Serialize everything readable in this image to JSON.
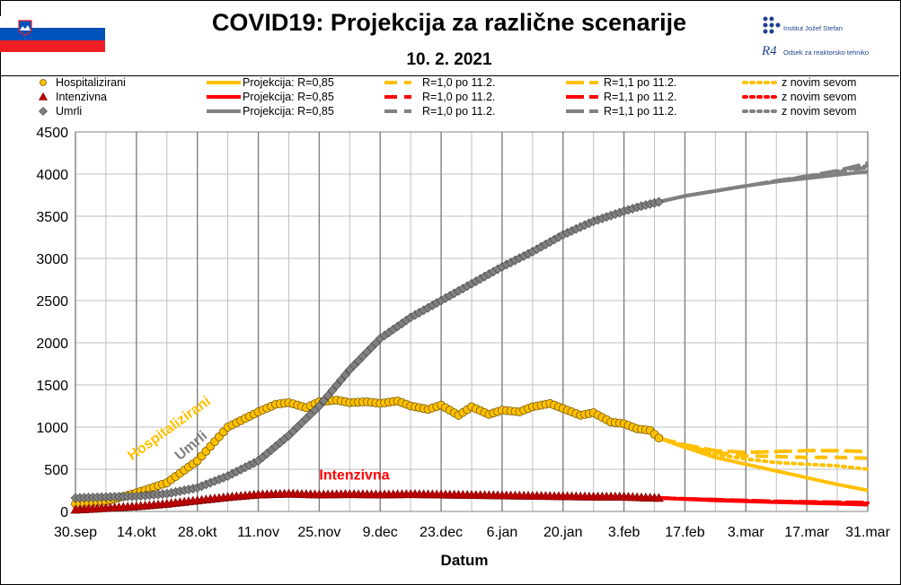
{
  "header": {
    "title": "COVID19: Projekcija za različne scenarije",
    "date": "10. 2. 2021",
    "institute": "Institut Jožef Stefan",
    "department": "Odsek za reaktorsko tehniko",
    "department_logo": "R4"
  },
  "legend": {
    "rows": [
      {
        "marker_label": "Hospitalizirani",
        "color": "#FFC000",
        "marker": "circle",
        "proj": "Projekcija: R=0,85",
        "r10": "R=1,0 po 11.2.",
        "r11": "R=1,1 po 11.2.",
        "nov": "z novim sevom"
      },
      {
        "marker_label": "Intenzivna",
        "color": "#FF0000",
        "marker": "triangle",
        "proj": "Projekcija: R=0,85",
        "r10": "R=1,0 po 11.2.",
        "r11": "R=1,1 po 11.2.",
        "nov": "z novim sevom"
      },
      {
        "marker_label": "Umrli",
        "color": "#808080",
        "marker": "diamond",
        "proj": "Projekcija: R=0,85",
        "r10": "R=1,0 po 11.2.",
        "r11": "R=1,1 po 11.2.",
        "nov": "z novim sevom"
      }
    ]
  },
  "chart_data": {
    "type": "line",
    "xlabel": "Datum",
    "ylabel": "",
    "x_tick_labels": [
      "30.sep",
      "14.okt",
      "28.okt",
      "11.nov",
      "25.nov",
      "9.dec",
      "23.dec",
      "6.jan",
      "20.jan",
      "3.feb",
      "17.feb",
      "3.mar",
      "17.mar",
      "31.mar"
    ],
    "x_tick_day_offsets": [
      0,
      14,
      28,
      42,
      56,
      70,
      84,
      98,
      112,
      126,
      140,
      154,
      168,
      182
    ],
    "xlim_days": [
      0,
      182
    ],
    "ylim": [
      0,
      4500
    ],
    "y_ticks": [
      0,
      500,
      1000,
      1500,
      2000,
      2500,
      3000,
      3500,
      4000,
      4500
    ],
    "grid": true,
    "observed_end_day": 134,
    "annotations": [
      {
        "text": "Hospitalizirani",
        "color": "#FFC000"
      },
      {
        "text": "Umrli",
        "color": "#808080"
      },
      {
        "text": "Intenzivna",
        "color": "#FF0000"
      }
    ],
    "observed": [
      {
        "name": "Hospitalizirani",
        "color": "#FFC000",
        "marker": "circle",
        "points": [
          [
            0,
            90
          ],
          [
            7,
            120
          ],
          [
            14,
            220
          ],
          [
            21,
            340
          ],
          [
            28,
            600
          ],
          [
            35,
            1000
          ],
          [
            42,
            1180
          ],
          [
            46,
            1270
          ],
          [
            49,
            1290
          ],
          [
            53,
            1230
          ],
          [
            56,
            1300
          ],
          [
            60,
            1320
          ],
          [
            63,
            1290
          ],
          [
            67,
            1300
          ],
          [
            70,
            1280
          ],
          [
            74,
            1310
          ],
          [
            77,
            1250
          ],
          [
            81,
            1210
          ],
          [
            84,
            1260
          ],
          [
            88,
            1140
          ],
          [
            91,
            1240
          ],
          [
            95,
            1150
          ],
          [
            98,
            1200
          ],
          [
            102,
            1180
          ],
          [
            105,
            1240
          ],
          [
            109,
            1280
          ],
          [
            112,
            1220
          ],
          [
            116,
            1140
          ],
          [
            119,
            1170
          ],
          [
            123,
            1060
          ],
          [
            126,
            1040
          ],
          [
            129,
            980
          ],
          [
            132,
            960
          ],
          [
            134,
            870
          ]
        ]
      },
      {
        "name": "Intenzivna",
        "color": "#FF0000",
        "marker": "triangle",
        "points": [
          [
            0,
            20
          ],
          [
            7,
            40
          ],
          [
            14,
            60
          ],
          [
            21,
            90
          ],
          [
            28,
            130
          ],
          [
            35,
            170
          ],
          [
            42,
            200
          ],
          [
            49,
            210
          ],
          [
            56,
            200
          ],
          [
            63,
            205
          ],
          [
            70,
            200
          ],
          [
            77,
            205
          ],
          [
            84,
            200
          ],
          [
            91,
            195
          ],
          [
            98,
            190
          ],
          [
            105,
            185
          ],
          [
            112,
            180
          ],
          [
            119,
            175
          ],
          [
            126,
            175
          ],
          [
            130,
            165
          ],
          [
            134,
            160
          ]
        ]
      },
      {
        "name": "Umrli",
        "color": "#808080",
        "marker": "diamond",
        "points": [
          [
            0,
            160
          ],
          [
            7,
            170
          ],
          [
            14,
            180
          ],
          [
            21,
            210
          ],
          [
            28,
            280
          ],
          [
            35,
            420
          ],
          [
            42,
            600
          ],
          [
            49,
            900
          ],
          [
            56,
            1250
          ],
          [
            63,
            1680
          ],
          [
            70,
            2050
          ],
          [
            77,
            2300
          ],
          [
            84,
            2500
          ],
          [
            91,
            2700
          ],
          [
            98,
            2900
          ],
          [
            105,
            3080
          ],
          [
            112,
            3280
          ],
          [
            119,
            3440
          ],
          [
            126,
            3560
          ],
          [
            130,
            3620
          ],
          [
            134,
            3670
          ]
        ]
      }
    ],
    "projections": [
      {
        "name": "Hospitalizirani",
        "scenario": "Projekcija: R=0,85",
        "color": "#FFC000",
        "style": "solid",
        "points": [
          [
            134,
            870
          ],
          [
            140,
            760
          ],
          [
            147,
            640
          ],
          [
            154,
            560
          ],
          [
            161,
            480
          ],
          [
            168,
            400
          ],
          [
            175,
            320
          ],
          [
            182,
            250
          ]
        ]
      },
      {
        "name": "Hospitalizirani",
        "scenario": "R=1,0 po 11.2.",
        "color": "#FFC000",
        "style": "dash",
        "points": [
          [
            134,
            870
          ],
          [
            140,
            780
          ],
          [
            147,
            700
          ],
          [
            154,
            660
          ],
          [
            161,
            650
          ],
          [
            168,
            640
          ],
          [
            175,
            640
          ],
          [
            182,
            630
          ]
        ]
      },
      {
        "name": "Hospitalizirani",
        "scenario": "R=1,1 po 11.2.",
        "color": "#FFC000",
        "style": "longdash",
        "points": [
          [
            134,
            870
          ],
          [
            140,
            790
          ],
          [
            147,
            720
          ],
          [
            154,
            700
          ],
          [
            161,
            710
          ],
          [
            168,
            720
          ],
          [
            175,
            720
          ],
          [
            182,
            710
          ]
        ]
      },
      {
        "name": "Hospitalizirani",
        "scenario": "z novim sevom",
        "color": "#FFC000",
        "style": "dot",
        "points": [
          [
            134,
            870
          ],
          [
            140,
            770
          ],
          [
            147,
            680
          ],
          [
            154,
            620
          ],
          [
            161,
            580
          ],
          [
            168,
            560
          ],
          [
            175,
            540
          ],
          [
            182,
            500
          ]
        ]
      },
      {
        "name": "Intenzivna",
        "scenario": "Projekcija: R=0,85",
        "color": "#FF0000",
        "style": "solid",
        "points": [
          [
            134,
            160
          ],
          [
            147,
            130
          ],
          [
            161,
            110
          ],
          [
            175,
            90
          ],
          [
            182,
            80
          ]
        ]
      },
      {
        "name": "Intenzivna",
        "scenario": "R=1,0 po 11.2.",
        "color": "#FF0000",
        "style": "dash",
        "points": [
          [
            134,
            160
          ],
          [
            147,
            135
          ],
          [
            161,
            115
          ],
          [
            175,
            100
          ],
          [
            182,
            95
          ]
        ]
      },
      {
        "name": "Intenzivna",
        "scenario": "R=1,1 po 11.2.",
        "color": "#FF0000",
        "style": "longdash",
        "points": [
          [
            134,
            160
          ],
          [
            147,
            140
          ],
          [
            161,
            120
          ],
          [
            175,
            110
          ],
          [
            182,
            105
          ]
        ]
      },
      {
        "name": "Intenzivna",
        "scenario": "z novim sevom",
        "color": "#FF0000",
        "style": "dot",
        "points": [
          [
            134,
            160
          ],
          [
            147,
            138
          ],
          [
            161,
            118
          ],
          [
            175,
            105
          ],
          [
            182,
            100
          ]
        ]
      },
      {
        "name": "Umrli",
        "scenario": "Projekcija: R=0,85",
        "color": "#808080",
        "style": "solid",
        "points": [
          [
            134,
            3670
          ],
          [
            140,
            3740
          ],
          [
            147,
            3800
          ],
          [
            154,
            3860
          ],
          [
            161,
            3910
          ],
          [
            168,
            3950
          ],
          [
            175,
            3990
          ],
          [
            182,
            4030
          ]
        ]
      },
      {
        "name": "Umrli",
        "scenario": "R=1,0 po 11.2.",
        "color": "#808080",
        "style": "dash",
        "points": [
          [
            134,
            3670
          ],
          [
            140,
            3740
          ],
          [
            147,
            3800
          ],
          [
            154,
            3860
          ],
          [
            161,
            3915
          ],
          [
            168,
            3965
          ],
          [
            175,
            4020
          ],
          [
            182,
            4080
          ]
        ]
      },
      {
        "name": "Umrli",
        "scenario": "R=1,1 po 11.2.",
        "color": "#808080",
        "style": "longdash",
        "points": [
          [
            134,
            3670
          ],
          [
            140,
            3740
          ],
          [
            147,
            3800
          ],
          [
            154,
            3860
          ],
          [
            161,
            3920
          ],
          [
            168,
            3975
          ],
          [
            175,
            4040
          ],
          [
            182,
            4130
          ]
        ]
      },
      {
        "name": "Umrli",
        "scenario": "z novim sevom",
        "color": "#808080",
        "style": "dot",
        "points": [
          [
            134,
            3670
          ],
          [
            140,
            3740
          ],
          [
            147,
            3800
          ],
          [
            154,
            3860
          ],
          [
            161,
            3918
          ],
          [
            168,
            3970
          ],
          [
            175,
            4030
          ],
          [
            182,
            4100
          ]
        ]
      }
    ]
  }
}
